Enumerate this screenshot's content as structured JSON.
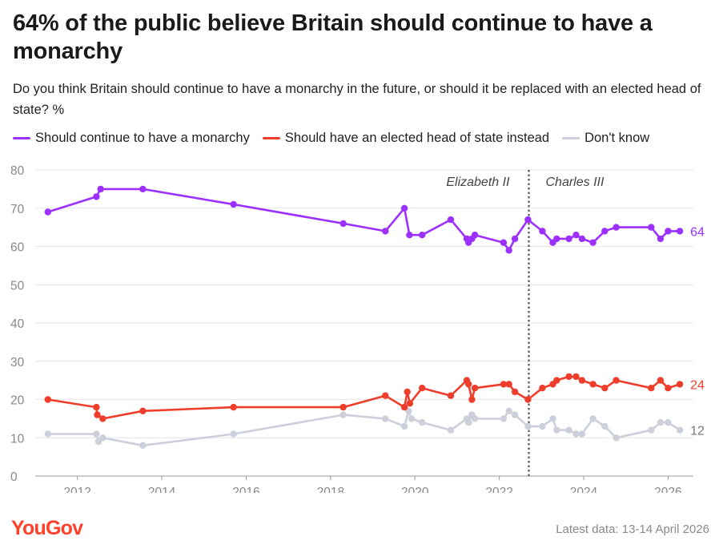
{
  "title": "64% of the public believe Britain should continue to have a monarchy",
  "subtitle": "Do you think Britain should continue to have a monarchy in the future, or should it be replaced with an elected head of state? %",
  "legend": [
    {
      "label": "Should continue to have a monarchy",
      "color": "#9b30ff"
    },
    {
      "label": "Should have an elected head of state instead",
      "color": "#ef3d2b"
    },
    {
      "label": "Don't know",
      "color": "#cdd0da"
    }
  ],
  "brand": "YouGov",
  "footnote": "Latest data: 13-14 April 2026",
  "chart_data": {
    "type": "line",
    "title": "64% of the public believe Britain should continue to have a monarchy",
    "xlabel": "",
    "ylabel": "%",
    "xlim": [
      2011.0,
      2026.6
    ],
    "ylim": [
      0,
      80
    ],
    "yticks": [
      0,
      10,
      20,
      30,
      40,
      50,
      60,
      70,
      80
    ],
    "xticks": [
      2012,
      2014,
      2016,
      2018,
      2020,
      2022,
      2024,
      2026
    ],
    "grid": true,
    "annotations": [
      {
        "x": 2022.7,
        "type": "vline",
        "left_label": "Elizabeth II",
        "right_label": "Charles III"
      }
    ],
    "series": [
      {
        "name": "Should continue to have a monarchy",
        "color": "#9b30ff",
        "end_label": "64",
        "x": [
          2011.3,
          2012.45,
          2012.55,
          2013.55,
          2015.7,
          2018.3,
          2019.3,
          2019.75,
          2019.87,
          2020.17,
          2020.85,
          2021.23,
          2021.27,
          2021.35,
          2021.42,
          2022.1,
          2022.23,
          2022.37,
          2022.68,
          2023.02,
          2023.27,
          2023.36,
          2023.65,
          2023.82,
          2023.96,
          2024.22,
          2024.5,
          2024.77,
          2025.6,
          2025.82,
          2026.0,
          2026.28
        ],
        "values": [
          69,
          73,
          75,
          75,
          71,
          66,
          64,
          70,
          63,
          63,
          67,
          62,
          61,
          62,
          63,
          61,
          59,
          62,
          67,
          64,
          61,
          62,
          62,
          63,
          62,
          61,
          64,
          65,
          65,
          62,
          64,
          64
        ]
      },
      {
        "name": "Should have an elected head of state instead",
        "color": "#ef3d2b",
        "end_label": "24",
        "x": [
          2011.3,
          2012.45,
          2012.47,
          2012.6,
          2013.55,
          2015.7,
          2018.3,
          2019.3,
          2019.75,
          2019.82,
          2019.88,
          2020.17,
          2020.85,
          2021.23,
          2021.27,
          2021.35,
          2021.42,
          2022.1,
          2022.23,
          2022.37,
          2022.68,
          2023.02,
          2023.27,
          2023.36,
          2023.65,
          2023.82,
          2023.96,
          2024.22,
          2024.5,
          2024.77,
          2025.6,
          2025.82,
          2026.0,
          2026.28
        ],
        "values": [
          20,
          18,
          16,
          15,
          17,
          18,
          18,
          21,
          18,
          22,
          19,
          23,
          21,
          25,
          24,
          20,
          23,
          24,
          24,
          22,
          20,
          23,
          24,
          25,
          26,
          26,
          25,
          24,
          23,
          25,
          23,
          25,
          23,
          24
        ]
      },
      {
        "name": "Don't know",
        "color": "#cdd0da",
        "end_label": "12",
        "x": [
          2011.3,
          2012.45,
          2012.5,
          2012.6,
          2013.55,
          2015.7,
          2018.3,
          2019.3,
          2019.75,
          2019.85,
          2019.92,
          2020.17,
          2020.85,
          2021.23,
          2021.27,
          2021.35,
          2021.42,
          2022.1,
          2022.23,
          2022.37,
          2022.68,
          2023.02,
          2023.27,
          2023.36,
          2023.65,
          2023.82,
          2023.96,
          2024.22,
          2024.5,
          2024.77,
          2025.6,
          2025.82,
          2026.0,
          2026.28
        ],
        "values": [
          11,
          11,
          9,
          10,
          8,
          11,
          16,
          15,
          13,
          17,
          15,
          14,
          12,
          15,
          14,
          16,
          15,
          15,
          17,
          16,
          13,
          13,
          15,
          12,
          12,
          11,
          11,
          15,
          13,
          10,
          12,
          14,
          14,
          12
        ]
      }
    ]
  }
}
